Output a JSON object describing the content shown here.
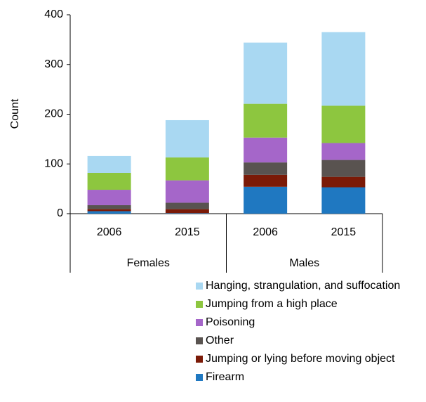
{
  "chart_data": {
    "type": "stacked-bar",
    "y_label": "Count",
    "groups": [
      {
        "name": "Females",
        "categories": [
          "2006",
          "2015"
        ]
      },
      {
        "name": "Males",
        "categories": [
          "2006",
          "2015"
        ]
      }
    ],
    "series": [
      {
        "name": "Firearm",
        "color": "#1f78c1",
        "values": [
          5,
          1,
          54,
          53
        ]
      },
      {
        "name": "Jumping or lying before moving object",
        "color": "#7b1a07",
        "values": [
          4,
          8,
          24,
          21
        ]
      },
      {
        "name": "Other",
        "color": "#595350",
        "values": [
          8,
          13,
          25,
          34
        ]
      },
      {
        "name": "Poisoning",
        "color": "#a566c9",
        "values": [
          31,
          45,
          50,
          34
        ]
      },
      {
        "name": "Jumping from a high place",
        "color": "#8dc63f",
        "values": [
          34,
          46,
          68,
          75
        ]
      },
      {
        "name": "Hanging, strangulation, and suffocation",
        "color": "#a9d8f2",
        "values": [
          34,
          75,
          123,
          148
        ]
      }
    ],
    "ylim": [
      0,
      400
    ],
    "yticks": [
      0,
      100,
      200,
      300,
      400
    ]
  }
}
